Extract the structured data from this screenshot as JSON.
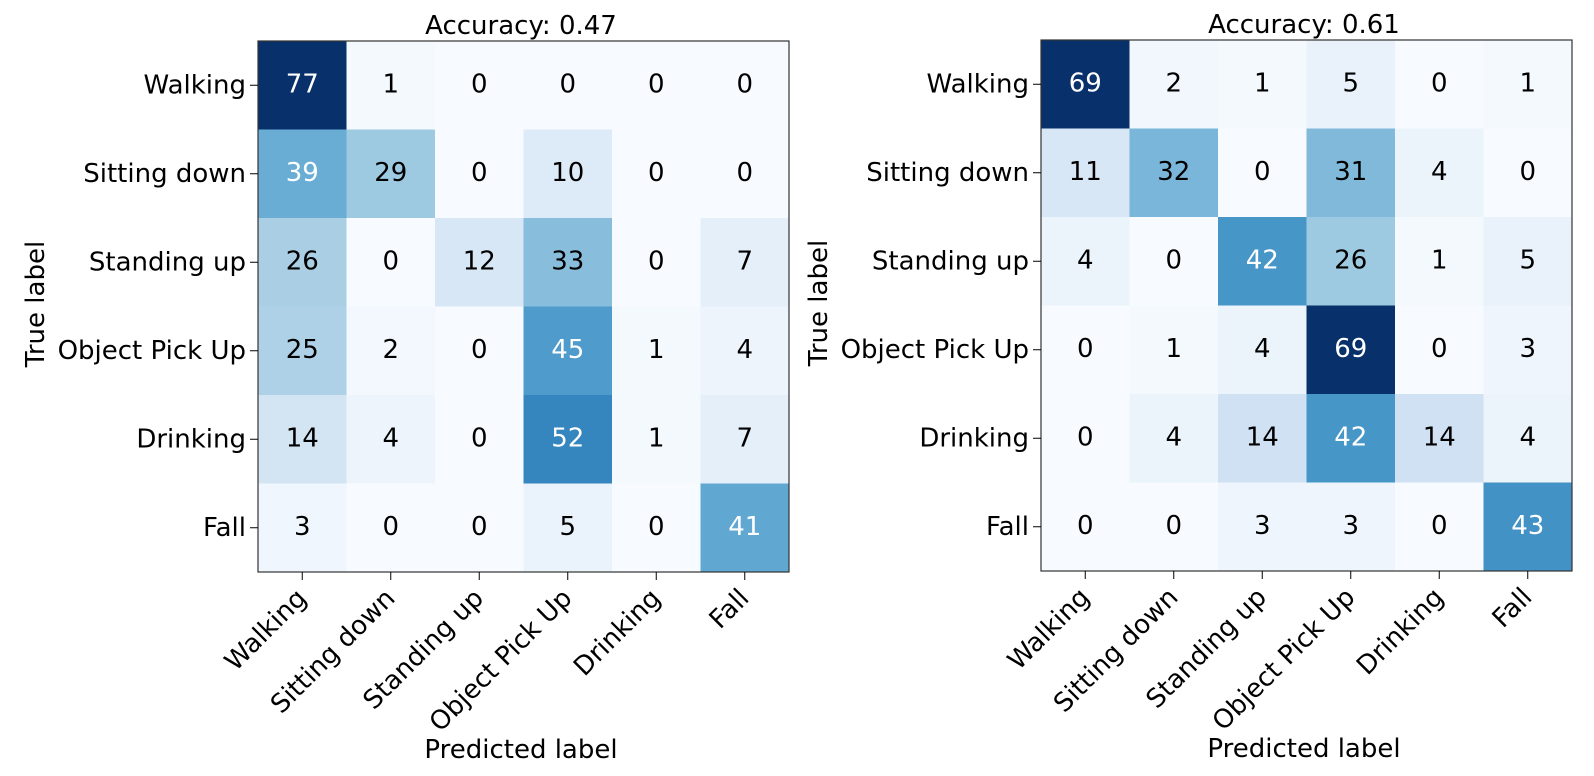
{
  "chart_data": [
    {
      "type": "heatmap",
      "title": "Accuracy: 0.47",
      "xlabel": "Predicted label",
      "ylabel": "True label",
      "x_categories": [
        "Walking",
        "Sitting down",
        "Standing up",
        "Object Pick Up",
        "Drinking",
        "Fall"
      ],
      "y_categories": [
        "Walking",
        "Sitting down",
        "Standing up",
        "Object Pick Up",
        "Drinking",
        "Fall"
      ],
      "values": [
        [
          77,
          1,
          0,
          0,
          0,
          0
        ],
        [
          39,
          29,
          0,
          10,
          0,
          0
        ],
        [
          26,
          0,
          12,
          33,
          0,
          7
        ],
        [
          25,
          2,
          0,
          45,
          1,
          4
        ],
        [
          14,
          4,
          0,
          52,
          1,
          7
        ],
        [
          3,
          0,
          0,
          5,
          0,
          41
        ]
      ],
      "colormap": "Blues",
      "grid": false
    },
    {
      "type": "heatmap",
      "title": "Accuracy: 0.61",
      "xlabel": "Predicted label",
      "ylabel": "True label",
      "x_categories": [
        "Walking",
        "Sitting down",
        "Standing up",
        "Object Pick Up",
        "Drinking",
        "Fall"
      ],
      "y_categories": [
        "Walking",
        "Sitting down",
        "Standing up",
        "Object Pick Up",
        "Drinking",
        "Fall"
      ],
      "values": [
        [
          69,
          2,
          1,
          5,
          0,
          1
        ],
        [
          11,
          32,
          0,
          31,
          4,
          0
        ],
        [
          4,
          0,
          42,
          26,
          1,
          5
        ],
        [
          0,
          1,
          4,
          69,
          0,
          3
        ],
        [
          0,
          4,
          14,
          42,
          14,
          4
        ],
        [
          0,
          0,
          3,
          3,
          0,
          43
        ]
      ],
      "colormap": "Blues",
      "grid": false
    }
  ]
}
